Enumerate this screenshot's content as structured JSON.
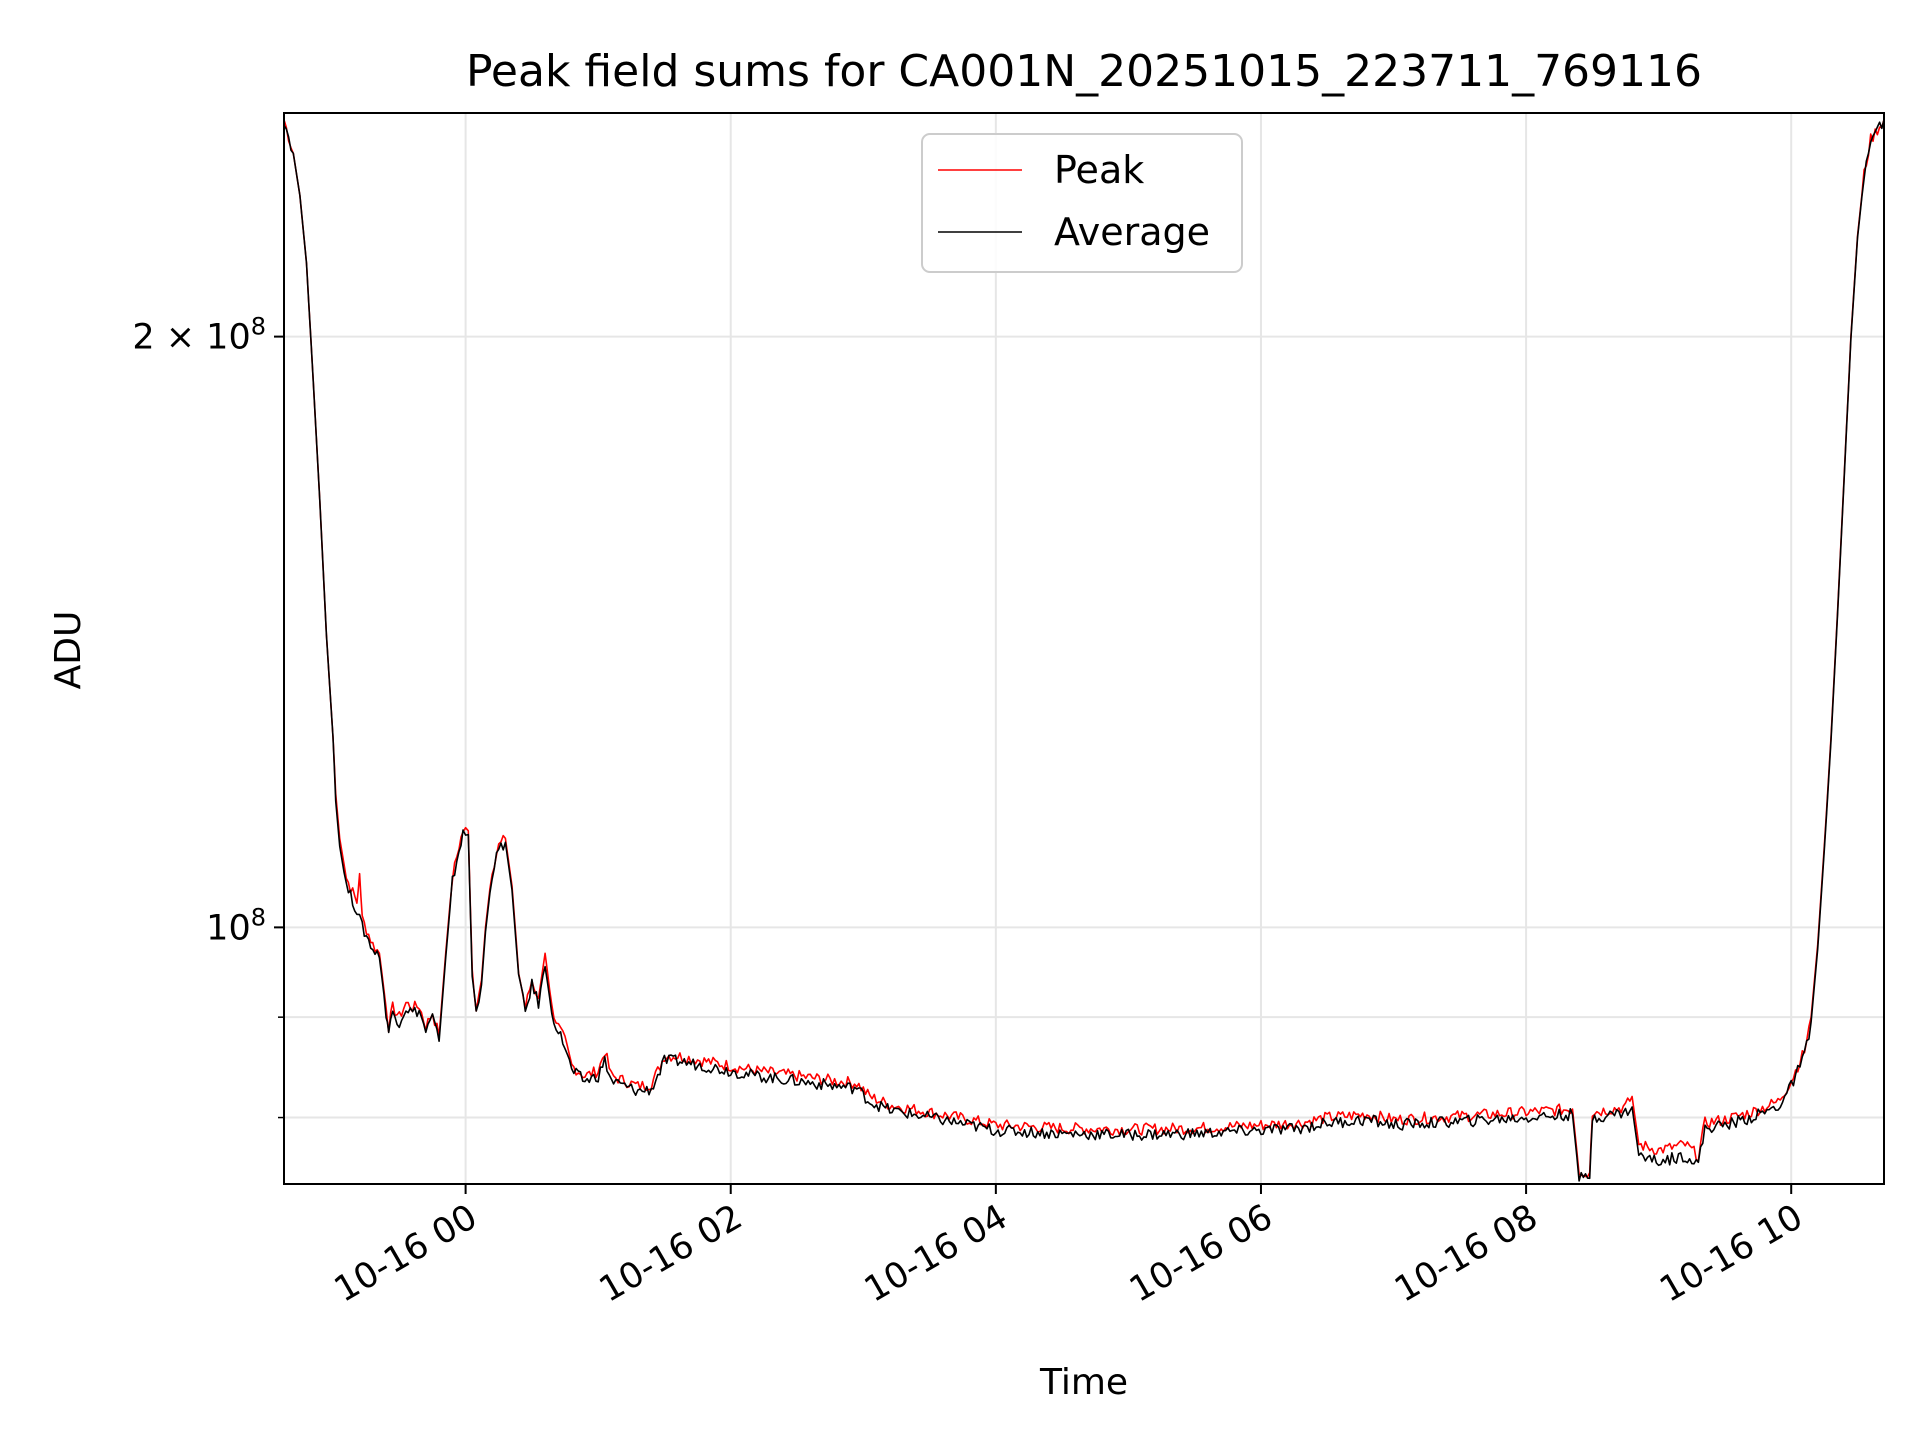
{
  "chart_data": {
    "type": "line",
    "title": "Peak field sums for CA001N_20251015_223711_769116",
    "xlabel": "Time",
    "ylabel": "ADU",
    "yscale": "log",
    "xlim": [
      -1.37,
      10.7
    ],
    "ylim": [
      74000000,
      260000000
    ],
    "grid": true,
    "legend_position": "top-center",
    "x_unit": "hours since 10-16 00:00",
    "x_ticks": [
      {
        "value": 0,
        "label": "10-16 00"
      },
      {
        "value": 2,
        "label": "10-16 02"
      },
      {
        "value": 4,
        "label": "10-16 04"
      },
      {
        "value": 6,
        "label": "10-16 06"
      },
      {
        "value": 8,
        "label": "10-16 08"
      },
      {
        "value": 10,
        "label": "10-16 10"
      }
    ],
    "y_ticks": [
      {
        "value": 200000000,
        "label": "2 × 10",
        "exp": "8"
      },
      {
        "value": 100000000,
        "label": "10",
        "exp": "8"
      }
    ],
    "y_minor_ticks": [
      90000000,
      80000000
    ],
    "series": [
      {
        "name": "Peak",
        "color": "#ff0000",
        "points": [
          [
            -1.37,
            258000000
          ],
          [
            -1.3,
            248000000
          ],
          [
            -1.25,
            236000000
          ],
          [
            -1.2,
            218000000
          ],
          [
            -1.15,
            190000000
          ],
          [
            -1.1,
            165000000
          ],
          [
            -1.05,
            141000000
          ],
          [
            -1.0,
            125000000
          ],
          [
            -0.98,
            117000000
          ],
          [
            -0.95,
            111000000
          ],
          [
            -0.9,
            106000000
          ],
          [
            -0.82,
            103000000
          ],
          [
            -0.8,
            106500000
          ],
          [
            -0.78,
            101000000
          ],
          [
            -0.7,
            98000000
          ],
          [
            -0.65,
            97000000
          ],
          [
            -0.6,
            91000000
          ],
          [
            -0.58,
            89000000
          ],
          [
            -0.55,
            91000000
          ],
          [
            -0.5,
            90000000
          ],
          [
            -0.45,
            91500000
          ],
          [
            -0.4,
            91000000
          ],
          [
            -0.35,
            91200000
          ],
          [
            -0.3,
            89000000
          ],
          [
            -0.25,
            90500000
          ],
          [
            -0.2,
            88000000
          ],
          [
            -0.15,
            97000000
          ],
          [
            -0.1,
            106000000
          ],
          [
            -0.05,
            110000000
          ],
          [
            -0.02,
            112000000
          ],
          [
            0.02,
            112000000
          ],
          [
            0.05,
            95000000
          ],
          [
            0.08,
            91000000
          ],
          [
            0.12,
            94000000
          ],
          [
            0.15,
            100000000
          ],
          [
            0.2,
            107000000
          ],
          [
            0.25,
            110000000
          ],
          [
            0.3,
            111000000
          ],
          [
            0.35,
            105000000
          ],
          [
            0.4,
            95000000
          ],
          [
            0.45,
            91000000
          ],
          [
            0.5,
            94000000
          ],
          [
            0.55,
            92000000
          ],
          [
            0.6,
            97000000
          ],
          [
            0.65,
            91000000
          ],
          [
            0.7,
            89000000
          ],
          [
            0.75,
            87500000
          ],
          [
            0.8,
            85000000
          ],
          [
            0.9,
            84000000
          ],
          [
            1.0,
            84500000
          ],
          [
            1.05,
            86500000
          ],
          [
            1.1,
            84000000
          ],
          [
            1.2,
            83500000
          ],
          [
            1.3,
            83000000
          ],
          [
            1.4,
            83200000
          ],
          [
            1.45,
            84500000
          ],
          [
            1.5,
            86000000
          ],
          [
            1.6,
            86000000
          ],
          [
            1.8,
            85500000
          ],
          [
            2.0,
            85000000
          ],
          [
            2.2,
            84500000
          ],
          [
            2.5,
            84000000
          ],
          [
            2.8,
            83500000
          ],
          [
            2.95,
            83300000
          ],
          [
            3.05,
            82000000
          ],
          [
            3.2,
            81200000
          ],
          [
            3.5,
            80500000
          ],
          [
            3.8,
            79800000
          ],
          [
            4.0,
            79300000
          ],
          [
            4.5,
            79000000
          ],
          [
            5.0,
            78900000
          ],
          [
            5.5,
            79000000
          ],
          [
            6.0,
            79300000
          ],
          [
            6.3,
            79500000
          ],
          [
            6.5,
            80000000
          ],
          [
            6.8,
            80300000
          ],
          [
            7.0,
            79800000
          ],
          [
            7.3,
            80000000
          ],
          [
            7.6,
            80200000
          ],
          [
            8.0,
            80500000
          ],
          [
            8.35,
            80800000
          ],
          [
            8.4,
            75000000
          ],
          [
            8.48,
            75000000
          ],
          [
            8.5,
            80500000
          ],
          [
            8.75,
            81000000
          ],
          [
            8.8,
            82000000
          ],
          [
            8.85,
            77500000
          ],
          [
            9.0,
            77000000
          ],
          [
            9.2,
            77500000
          ],
          [
            9.3,
            76500000
          ],
          [
            9.35,
            79500000
          ],
          [
            9.5,
            79800000
          ],
          [
            9.7,
            80500000
          ],
          [
            9.9,
            81500000
          ],
          [
            10.0,
            83500000
          ],
          [
            10.1,
            86500000
          ],
          [
            10.15,
            90000000
          ],
          [
            10.2,
            98000000
          ],
          [
            10.25,
            110000000
          ],
          [
            10.3,
            125000000
          ],
          [
            10.35,
            145000000
          ],
          [
            10.4,
            170000000
          ],
          [
            10.45,
            200000000
          ],
          [
            10.5,
            225000000
          ],
          [
            10.55,
            242000000
          ],
          [
            10.6,
            252000000
          ],
          [
            10.7,
            258000000
          ]
        ]
      },
      {
        "name": "Average",
        "color": "#000000",
        "points": [
          [
            -1.37,
            258000000
          ],
          [
            -1.3,
            248000000
          ],
          [
            -1.25,
            236000000
          ],
          [
            -1.2,
            218000000
          ],
          [
            -1.15,
            190000000
          ],
          [
            -1.1,
            165000000
          ],
          [
            -1.05,
            141000000
          ],
          [
            -1.0,
            125000000
          ],
          [
            -0.98,
            116000000
          ],
          [
            -0.95,
            110000000
          ],
          [
            -0.9,
            105000000
          ],
          [
            -0.82,
            102000000
          ],
          [
            -0.78,
            100000000
          ],
          [
            -0.7,
            97500000
          ],
          [
            -0.65,
            96500000
          ],
          [
            -0.6,
            90500000
          ],
          [
            -0.58,
            88500000
          ],
          [
            -0.55,
            90500000
          ],
          [
            -0.5,
            89500000
          ],
          [
            -0.45,
            91000000
          ],
          [
            -0.4,
            90500000
          ],
          [
            -0.35,
            90700000
          ],
          [
            -0.3,
            88500000
          ],
          [
            -0.25,
            90000000
          ],
          [
            -0.2,
            87500000
          ],
          [
            -0.15,
            96500000
          ],
          [
            -0.1,
            105500000
          ],
          [
            -0.05,
            109500000
          ],
          [
            -0.02,
            111500000
          ],
          [
            0.02,
            111500000
          ],
          [
            0.05,
            94500000
          ],
          [
            0.08,
            90500000
          ],
          [
            0.12,
            93500000
          ],
          [
            0.15,
            99500000
          ],
          [
            0.2,
            106500000
          ],
          [
            0.25,
            109500000
          ],
          [
            0.3,
            110500000
          ],
          [
            0.35,
            104500000
          ],
          [
            0.4,
            94500000
          ],
          [
            0.45,
            90500000
          ],
          [
            0.5,
            93500000
          ],
          [
            0.55,
            91500000
          ],
          [
            0.6,
            95500000
          ],
          [
            0.65,
            90500000
          ],
          [
            0.7,
            88500000
          ],
          [
            0.75,
            87000000
          ],
          [
            0.8,
            84500000
          ],
          [
            0.9,
            83500000
          ],
          [
            1.0,
            84000000
          ],
          [
            1.05,
            85500000
          ],
          [
            1.1,
            83500000
          ],
          [
            1.2,
            83000000
          ],
          [
            1.3,
            82500000
          ],
          [
            1.4,
            82700000
          ],
          [
            1.45,
            84000000
          ],
          [
            1.5,
            85500000
          ],
          [
            1.6,
            85500000
          ],
          [
            1.8,
            85000000
          ],
          [
            2.0,
            84500000
          ],
          [
            2.2,
            84000000
          ],
          [
            2.5,
            83500000
          ],
          [
            2.8,
            83000000
          ],
          [
            2.95,
            82800000
          ],
          [
            3.05,
            81500000
          ],
          [
            3.2,
            80700000
          ],
          [
            3.5,
            80000000
          ],
          [
            3.8,
            79300000
          ],
          [
            4.0,
            78800000
          ],
          [
            4.5,
            78500000
          ],
          [
            5.0,
            78400000
          ],
          [
            5.5,
            78500000
          ],
          [
            6.0,
            78800000
          ],
          [
            6.3,
            79000000
          ],
          [
            6.5,
            79500000
          ],
          [
            6.8,
            79800000
          ],
          [
            7.0,
            79300000
          ],
          [
            7.3,
            79500000
          ],
          [
            7.6,
            79700000
          ],
          [
            8.0,
            80000000
          ],
          [
            8.35,
            80300000
          ],
          [
            8.4,
            74500000
          ],
          [
            8.48,
            74500000
          ],
          [
            8.5,
            80000000
          ],
          [
            8.75,
            80500000
          ],
          [
            8.8,
            81000000
          ],
          [
            8.85,
            76500000
          ],
          [
            9.0,
            76000000
          ],
          [
            9.2,
            76500000
          ],
          [
            9.3,
            75800000
          ],
          [
            9.35,
            79000000
          ],
          [
            9.5,
            79300000
          ],
          [
            9.7,
            80000000
          ],
          [
            9.9,
            81000000
          ],
          [
            10.0,
            83000000
          ],
          [
            10.1,
            86000000
          ],
          [
            10.15,
            89500000
          ],
          [
            10.2,
            97500000
          ],
          [
            10.25,
            109500000
          ],
          [
            10.3,
            124500000
          ],
          [
            10.35,
            144500000
          ],
          [
            10.4,
            169500000
          ],
          [
            10.45,
            199500000
          ],
          [
            10.5,
            224500000
          ],
          [
            10.55,
            241500000
          ],
          [
            10.6,
            251500000
          ],
          [
            10.7,
            258000000
          ]
        ]
      }
    ]
  }
}
